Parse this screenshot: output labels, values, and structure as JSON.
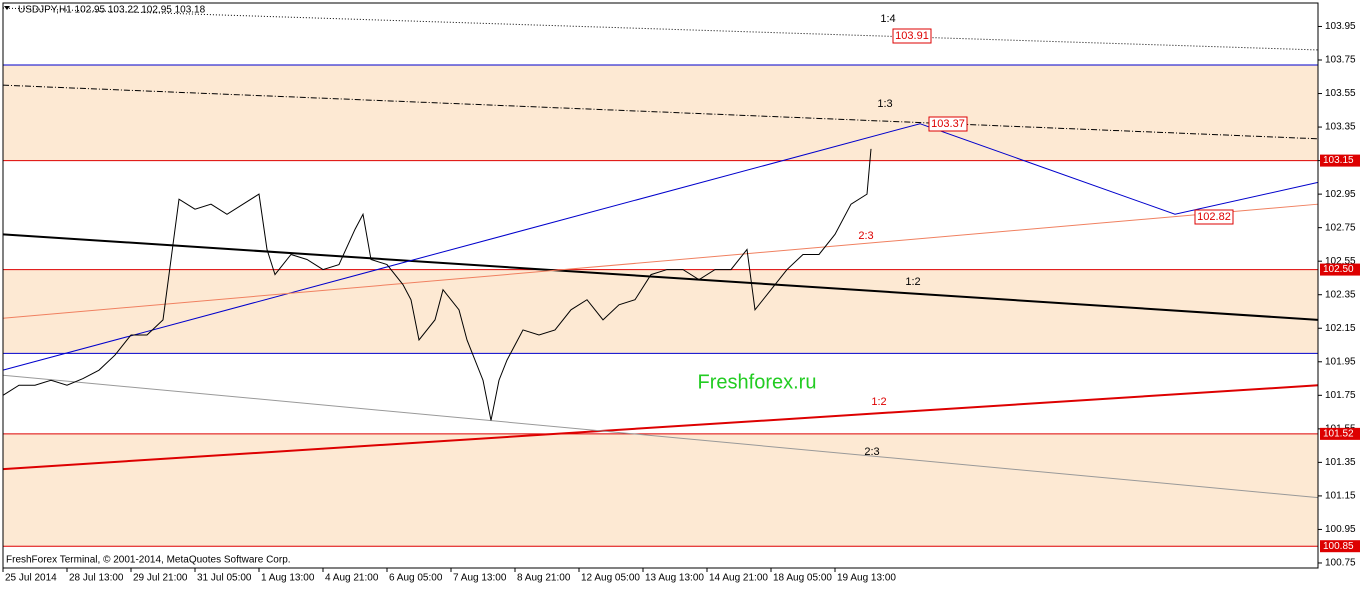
{
  "chart_data": {
    "type": "line",
    "header": "USDJPY,H1  102.95 103.22 102.95 103.18",
    "footer": "FreshForex Terminal, © 2001-2014, MetaQuotes Software Corp.",
    "watermark": "Freshforex.ru",
    "xlim": [
      0,
      657.5
    ],
    "ylim": [
      100.72,
      104.09
    ],
    "xticks": [
      {
        "value": 0,
        "label": "25 Jul 2014"
      },
      {
        "value": 32,
        "label": "28 Jul 13:00"
      },
      {
        "value": 64,
        "label": "29 Jul 21:00"
      },
      {
        "value": 96,
        "label": "31 Jul 05:00"
      },
      {
        "value": 128,
        "label": "1 Aug 13:00"
      },
      {
        "value": 160,
        "label": "4 Aug 21:00"
      },
      {
        "value": 192,
        "label": "6 Aug 05:00"
      },
      {
        "value": 224,
        "label": "7 Aug 13:00"
      },
      {
        "value": 256,
        "label": "8 Aug 21:00"
      },
      {
        "value": 288,
        "label": "12 Aug 05:00"
      },
      {
        "value": 320,
        "label": "13 Aug 13:00"
      },
      {
        "value": 352,
        "label": "14 Aug 21:00"
      },
      {
        "value": 384,
        "label": "18 Aug 05:00"
      },
      {
        "value": 416,
        "label": "19 Aug 13:00"
      }
    ],
    "yticks": [
      103.95,
      103.75,
      103.55,
      103.35,
      103.15,
      102.95,
      102.75,
      102.55,
      102.35,
      102.15,
      101.95,
      101.75,
      101.55,
      101.35,
      101.15,
      100.95,
      100.75
    ],
    "zone_color": "#fde9d3",
    "zones": [
      [
        103.15,
        103.72
      ],
      [
        102.0,
        102.5
      ],
      [
        100.85,
        101.52
      ]
    ],
    "levels": [
      {
        "value": 103.72,
        "color": "#0000cc"
      },
      {
        "value": 103.15,
        "label": "103.15",
        "color": "#dd0000"
      },
      {
        "value": 102.5,
        "label": "102.50",
        "color": "#dd0000"
      },
      {
        "value": 102.0,
        "color": "#0000cc"
      },
      {
        "value": 101.52,
        "label": "101.52",
        "color": "#dd0000"
      },
      {
        "value": 100.85,
        "label": "100.85",
        "color": "#dd0000"
      }
    ],
    "lines": [
      {
        "color": "#000000",
        "width": 2,
        "dash": "none",
        "x": [
          0,
          657.5
        ],
        "y": [
          102.71,
          102.2
        ]
      },
      {
        "color": "#0000cc",
        "width": 1,
        "dash": "none",
        "x": [
          0,
          458.5,
          586,
          657.5
        ],
        "y": [
          101.9,
          103.37,
          102.83,
          103.02
        ]
      },
      {
        "color": "#f08060",
        "width": 1,
        "dash": "none",
        "x": [
          0,
          657.5
        ],
        "y": [
          102.21,
          102.89
        ]
      },
      {
        "color": "#dd0000",
        "width": 2,
        "dash": "none",
        "x": [
          0,
          657.5
        ],
        "y": [
          101.31,
          101.81
        ]
      },
      {
        "color": "#999999",
        "width": 1,
        "dash": "none",
        "x": [
          0,
          657.5
        ],
        "y": [
          101.87,
          101.14
        ]
      },
      {
        "color": "#000000",
        "width": 1,
        "dash": "6 2 1 2",
        "x": [
          0,
          657.5
        ],
        "y": [
          103.6,
          103.28
        ]
      },
      {
        "color": "#000000",
        "width": 1,
        "dash": "1 2",
        "x": [
          0,
          657.5
        ],
        "y": [
          104.06,
          103.81
        ]
      }
    ],
    "annotations": [
      {
        "text": "1:4",
        "color": "#000000"
      },
      {
        "text": "103.91",
        "color": "#dd0000",
        "boxed": true
      },
      {
        "text": "1:3",
        "color": "#000000"
      },
      {
        "text": "103.37",
        "color": "#dd0000",
        "boxed": true
      },
      {
        "text": "2:3",
        "color": "#dd0000"
      },
      {
        "text": "102.82",
        "color": "#dd0000",
        "boxed": true
      },
      {
        "text": "1:2",
        "color": "#000000"
      },
      {
        "text": "1:2",
        "color": "#dd0000"
      },
      {
        "text": "2:3",
        "color": "#000000"
      }
    ],
    "series": [
      {
        "name": "USDJPY",
        "color": "#000000",
        "x": [
          0,
          8,
          16,
          24,
          32,
          40,
          48,
          56,
          64,
          72,
          80,
          84,
          88,
          96,
          104,
          112,
          120,
          128,
          132,
          136,
          144,
          152,
          160,
          168,
          176,
          180,
          184,
          192,
          200,
          204,
          208,
          216,
          220,
          228,
          232,
          240,
          244,
          248,
          252,
          256,
          260,
          268,
          276,
          284,
          292,
          300,
          308,
          316,
          324,
          332,
          340,
          348,
          356,
          364,
          372,
          376,
          384,
          392,
          400,
          408,
          416,
          424,
          432,
          434
        ],
        "values": [
          101.75,
          101.81,
          101.81,
          101.84,
          101.81,
          101.85,
          101.9,
          101.99,
          102.11,
          102.11,
          102.2,
          102.56,
          102.92,
          102.86,
          102.89,
          102.83,
          102.89,
          102.95,
          102.62,
          102.47,
          102.59,
          102.56,
          102.5,
          102.53,
          102.74,
          102.83,
          102.56,
          102.53,
          102.41,
          102.32,
          102.08,
          102.2,
          102.38,
          102.26,
          102.08,
          101.84,
          101.6,
          101.84,
          101.96,
          102.05,
          102.14,
          102.11,
          102.14,
          102.26,
          102.32,
          102.2,
          102.29,
          102.32,
          102.47,
          102.5,
          102.5,
          102.44,
          102.5,
          102.5,
          102.62,
          102.26,
          102.38,
          102.5,
          102.59,
          102.59,
          102.71,
          102.89,
          102.95,
          103.22
        ]
      }
    ]
  }
}
